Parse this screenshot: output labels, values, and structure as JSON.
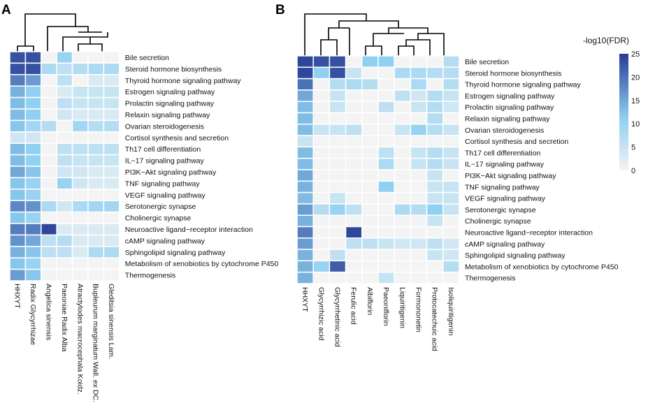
{
  "chart_data": [
    {
      "panel": "A",
      "type": "heatmap",
      "rows": [
        "Bile secretion",
        "Steroid hormone biosynthesis",
        "Thyroid hormone signaling pathway",
        "Estrogen signaling pathway",
        "Prolactin signaling pathway",
        "Relaxin signaling pathway",
        "Ovarian steroidogenesis",
        "Cortisol synthesis and secretion",
        "Th17 cell differentiation",
        "IL−17 signaling pathway",
        "PI3K−Akt signaling pathway",
        "TNF signaling pathway",
        "VEGF signaling pathway",
        "Serotonergic synapse",
        "Cholinergic synapse",
        "Neuroactive ligand−receptor interaction",
        "cAMP signaling pathway",
        "Sphingolipid signaling pathway",
        "Metabolism of xenobiotics by cytochrome P450",
        "Thermogenesis"
      ],
      "columns": [
        "HHXYT",
        "Radix Glycyrrhizae",
        "Angelica sinensis",
        "Paeoniae Radix Alba",
        "Atractylodes macrocephala Koidz.",
        "Bupleurum marginatum Wall. ex DC.",
        "Gleditsia sinensis Lam."
      ],
      "values": [
        [
          23,
          23,
          0,
          10,
          0,
          0,
          0
        ],
        [
          23,
          23,
          8,
          6,
          7,
          8,
          8
        ],
        [
          19,
          16,
          0,
          6,
          0,
          3,
          3
        ],
        [
          14,
          11,
          0,
          3,
          5,
          5,
          5
        ],
        [
          13,
          11,
          0,
          6,
          5,
          5,
          5
        ],
        [
          13,
          11,
          0,
          4,
          3,
          3,
          3
        ],
        [
          12,
          9,
          7,
          0,
          9,
          7,
          7
        ],
        [
          4,
          4,
          0,
          0,
          0,
          0,
          0
        ],
        [
          13,
          11,
          0,
          6,
          6,
          6,
          6
        ],
        [
          13,
          11,
          0,
          6,
          5,
          5,
          5
        ],
        [
          15,
          12,
          0,
          4,
          4,
          3,
          3
        ],
        [
          12,
          10,
          0,
          10,
          4,
          3,
          3
        ],
        [
          12,
          10,
          0,
          0,
          0,
          0,
          0
        ],
        [
          18,
          17,
          8,
          4,
          8,
          9,
          9
        ],
        [
          12,
          10,
          0,
          0,
          0,
          0,
          0
        ],
        [
          19,
          19,
          24,
          3,
          3,
          3,
          3
        ],
        [
          17,
          15,
          6,
          7,
          3,
          3,
          3
        ],
        [
          14,
          12,
          6,
          6,
          3,
          8,
          8
        ],
        [
          12,
          10,
          0,
          0,
          0,
          0,
          0
        ],
        [
          16,
          12,
          0,
          0,
          0,
          0,
          0
        ]
      ]
    },
    {
      "panel": "B",
      "type": "heatmap",
      "rows": [
        "Bile secretion",
        "Steroid hormone biosynthesis",
        "Thyroid hormone signaling pathway",
        "Estrogen signaling pathway",
        "Prolactin signaling pathway",
        "Relaxin signaling pathway",
        "Ovarian steroidogenesis",
        "Cortisol synthesis and secretion",
        "Th17 cell differentiation",
        "IL−17 signaling pathway",
        "PI3K−Akt signaling pathway",
        "TNF signaling pathway",
        "VEGF signaling pathway",
        "Serotonergic synapse",
        "Cholinergic synapse",
        "Neuroactive ligand−receptor interaction",
        "cAMP signaling pathway",
        "Sphingolipid signaling pathway",
        "Metabolism of xenobiotics by cytochrome P450",
        "Thermogenesis"
      ],
      "columns": [
        "HHXYT",
        "Glycyrrhizic acid",
        "Glycyrrhetinic acid",
        "Ferulic acid",
        "Albiflorin",
        "Paeoniflorin",
        "Liquiritigenin",
        "Formononetin",
        "Protocatechuic acid",
        "Isoliquiritigenin"
      ],
      "values": [
        [
          24,
          23,
          23,
          0,
          11,
          11,
          0,
          0,
          0,
          7
        ],
        [
          24,
          11,
          23,
          5,
          0,
          0,
          8,
          8,
          7,
          7
        ],
        [
          20,
          0,
          7,
          8,
          7,
          0,
          0,
          8,
          0,
          7
        ],
        [
          15,
          0,
          5,
          0,
          0,
          0,
          6,
          4,
          7,
          5
        ],
        [
          13,
          0,
          5,
          0,
          0,
          6,
          0,
          5,
          7,
          4
        ],
        [
          13,
          0,
          0,
          0,
          0,
          0,
          0,
          0,
          7,
          0
        ],
        [
          13,
          5,
          5,
          6,
          0,
          0,
          5,
          10,
          7,
          5
        ],
        [
          5,
          0,
          0,
          0,
          0,
          0,
          0,
          0,
          0,
          0
        ],
        [
          13,
          0,
          0,
          0,
          0,
          6,
          0,
          5,
          7,
          5
        ],
        [
          13,
          0,
          0,
          0,
          0,
          8,
          0,
          5,
          7,
          5
        ],
        [
          15,
          0,
          0,
          0,
          0,
          0,
          0,
          0,
          5,
          0
        ],
        [
          14,
          0,
          0,
          0,
          0,
          11,
          0,
          0,
          5,
          5
        ],
        [
          13,
          0,
          5,
          0,
          0,
          0,
          0,
          0,
          5,
          5
        ],
        [
          16,
          7,
          10,
          6,
          0,
          0,
          8,
          7,
          11,
          5
        ],
        [
          14,
          0,
          0,
          0,
          0,
          0,
          0,
          0,
          5,
          0
        ],
        [
          19,
          0,
          0,
          24,
          0,
          0,
          0,
          0,
          0,
          0
        ],
        [
          16,
          0,
          0,
          6,
          6,
          5,
          4,
          4,
          6,
          4
        ],
        [
          14,
          0,
          6,
          0,
          0,
          0,
          0,
          0,
          5,
          4
        ],
        [
          14,
          10,
          22,
          0,
          0,
          0,
          0,
          0,
          0,
          7
        ],
        [
          14,
          0,
          0,
          0,
          0,
          5,
          0,
          0,
          0,
          0
        ]
      ]
    }
  ],
  "legend": {
    "title": "-log10(FDR)",
    "ticks": [
      "25",
      "20",
      "15",
      "10",
      "5",
      "0"
    ],
    "range": [
      0,
      25
    ],
    "color_low": "#f4f4f4",
    "color_mid": "#8ecff1",
    "color_high": "#283c94"
  }
}
